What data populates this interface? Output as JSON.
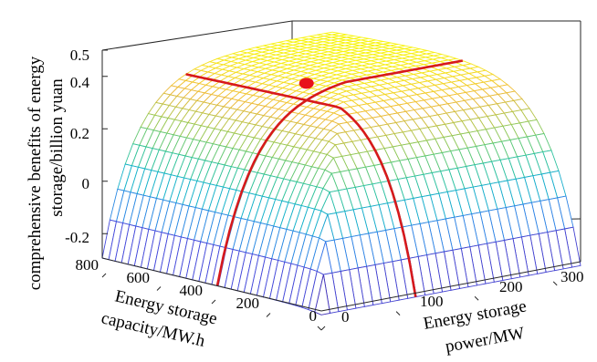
{
  "chart_data": {
    "type": "surface",
    "zlabel_lines": [
      "comprehensive benefits of energy",
      "storage/billion yuan"
    ],
    "xlabel_lines": [
      "Energy storage",
      "capacity/MW.h"
    ],
    "ylabel_lines": [
      "Energy storage",
      "power/MW"
    ],
    "x_axis": {
      "label": "Energy storage capacity",
      "unit": "MW.h",
      "range": [
        0,
        800
      ],
      "ticks": [
        "0",
        "200",
        "400",
        "600",
        "800"
      ]
    },
    "y_axis": {
      "label": "Energy storage power",
      "unit": "MW",
      "range": [
        0,
        330
      ],
      "ticks": [
        "0",
        "100",
        "200",
        "300"
      ]
    },
    "z_axis": {
      "label": "comprehensive benefits of energy storage",
      "unit": "billion yuan",
      "range": [
        -0.22,
        0.5
      ],
      "ticks": [
        "-0.2",
        "0",
        "0.2",
        "0.4",
        "0.5"
      ]
    },
    "colormap": "parula",
    "optimal_point": {
      "capacity_mwh": 380,
      "power_mw": 120,
      "benefit_billion_yuan": 0.49,
      "color": "#e8121b"
    },
    "ridge_color": "#d7191c",
    "grid": true
  }
}
